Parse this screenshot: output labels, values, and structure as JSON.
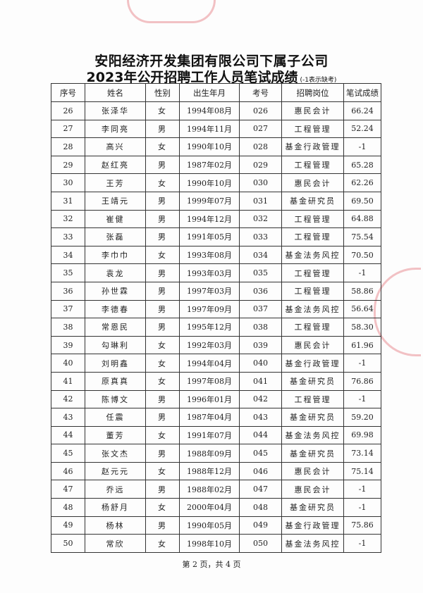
{
  "title_line1": "安阳经济开发集团有限公司下属子公司",
  "title_line2": "2023年公开招聘工作人员笔试成绩",
  "title_note": "(-1表示缺考)",
  "seal_color": "#dc505a",
  "columns": [
    "序号",
    "姓名",
    "性别",
    "出生年月",
    "考号",
    "招聘岗位",
    "笔试成绩"
  ],
  "rows": [
    [
      "26",
      "张泽华",
      "女",
      "1994年08月",
      "026",
      "惠民会计",
      "66.24"
    ],
    [
      "27",
      "李同亮",
      "男",
      "1994年11月",
      "027",
      "工程管理",
      "52.24"
    ],
    [
      "28",
      "高兴",
      "女",
      "1990年10月",
      "028",
      "基金行政管理",
      "-1"
    ],
    [
      "29",
      "赵红亮",
      "男",
      "1987年02月",
      "029",
      "工程管理",
      "65.28"
    ],
    [
      "30",
      "王芳",
      "女",
      "1990年10月",
      "030",
      "惠民会计",
      "62.26"
    ],
    [
      "31",
      "王靖元",
      "男",
      "1999年07月",
      "031",
      "基金研究员",
      "69.50"
    ],
    [
      "32",
      "崔健",
      "男",
      "1994年12月",
      "032",
      "工程管理",
      "64.88"
    ],
    [
      "33",
      "张磊",
      "男",
      "1991年05月",
      "033",
      "工程管理",
      "75.54"
    ],
    [
      "34",
      "李巾巾",
      "女",
      "1993年08月",
      "034",
      "基金法务风控",
      "70.50"
    ],
    [
      "35",
      "袁龙",
      "男",
      "1993年03月",
      "035",
      "工程管理",
      "-1"
    ],
    [
      "36",
      "孙世霖",
      "男",
      "1997年03月",
      "036",
      "工程管理",
      "58.86"
    ],
    [
      "37",
      "李德春",
      "男",
      "1997年09月",
      "037",
      "基金法务风控",
      "56.64"
    ],
    [
      "38",
      "常恩民",
      "男",
      "1995年12月",
      "038",
      "工程管理",
      "58.30"
    ],
    [
      "39",
      "勾琳利",
      "女",
      "1992年03月",
      "039",
      "惠民会计",
      "61.96"
    ],
    [
      "40",
      "刘明鑫",
      "女",
      "1994年04月",
      "040",
      "基金行政管理",
      "-1"
    ],
    [
      "41",
      "原真真",
      "女",
      "1997年08月",
      "041",
      "基金研究员",
      "76.86"
    ],
    [
      "42",
      "陈博文",
      "男",
      "1996年01月",
      "042",
      "工程管理",
      "-1"
    ],
    [
      "43",
      "任震",
      "男",
      "1987年04月",
      "043",
      "基金研究员",
      "59.20"
    ],
    [
      "44",
      "董芳",
      "女",
      "1991年07月",
      "044",
      "基金法务风控",
      "69.98"
    ],
    [
      "45",
      "张文杰",
      "男",
      "1988年09月",
      "045",
      "基金研究员",
      "73.14"
    ],
    [
      "46",
      "赵元元",
      "女",
      "1988年12月",
      "046",
      "惠民会计",
      "75.14"
    ],
    [
      "47",
      "乔远",
      "男",
      "1988年02月",
      "047",
      "惠民会计",
      "-1"
    ],
    [
      "48",
      "杨舒月",
      "女",
      "2000年04月",
      "048",
      "基金研究员",
      "-1"
    ],
    [
      "49",
      "杨林",
      "男",
      "1990年05月",
      "049",
      "基金行政管理",
      "75.86"
    ],
    [
      "50",
      "常欣",
      "女",
      "1998年10月",
      "050",
      "基金法务风控",
      "-1"
    ]
  ],
  "footer": "第 2 页，共 4 页"
}
